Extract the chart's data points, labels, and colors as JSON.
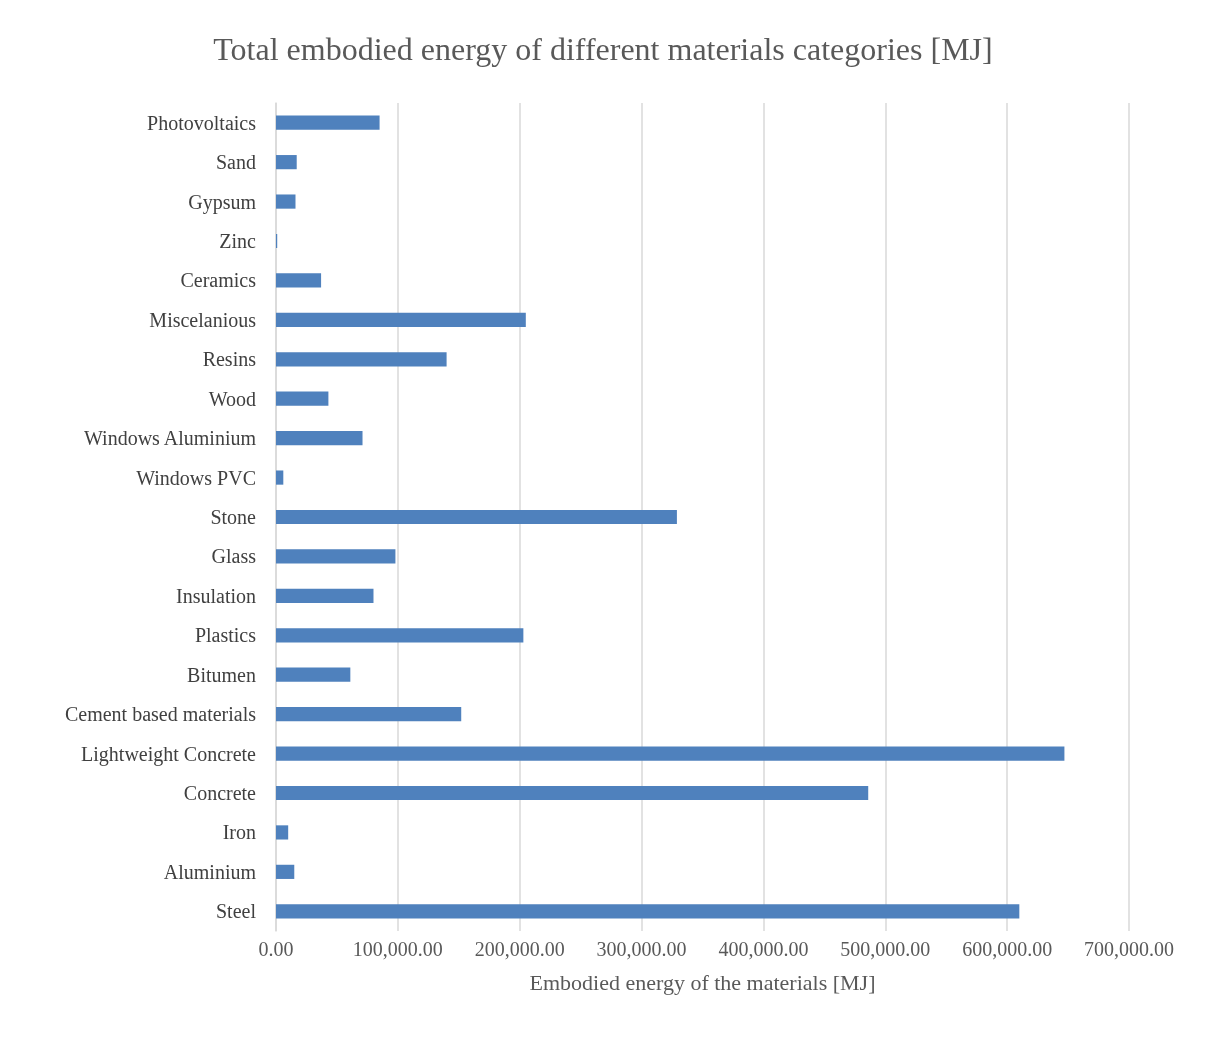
{
  "chart_data": {
    "type": "bar",
    "orientation": "horizontal",
    "title": "Total embodied energy of different materials categories [MJ]",
    "xlabel": "Embodied energy of the materials [MJ]",
    "categories": [
      "Photovoltaics",
      "Sand",
      "Gypsum",
      "Zinc",
      "Ceramics",
      "Miscelanious",
      "Resins",
      "Wood",
      "Windows Aluminium",
      "Windows PVC",
      "Stone",
      "Glass",
      "Insulation",
      "Plastics",
      "Bitumen",
      "Cement based materials",
      "Lightweight Concrete",
      "Concrete",
      "Iron",
      "Aluminium",
      "Steel"
    ],
    "values": [
      85000,
      17000,
      16000,
      1000,
      37000,
      205000,
      140000,
      43000,
      71000,
      6000,
      329000,
      98000,
      80000,
      203000,
      61000,
      152000,
      647000,
      486000,
      10000,
      15000,
      610000
    ],
    "color": "#4f81bd",
    "xlim": [
      0,
      700000
    ],
    "xticks": [
      {
        "value": 0,
        "label": "0.00"
      },
      {
        "value": 100000,
        "label": "100,000.00"
      },
      {
        "value": 200000,
        "label": "200,000.00"
      },
      {
        "value": 300000,
        "label": "300,000.00"
      },
      {
        "value": 400000,
        "label": "400,000.00"
      },
      {
        "value": 500000,
        "label": "500,000.00"
      },
      {
        "value": 600000,
        "label": "600,000.00"
      },
      {
        "value": 700000,
        "label": "700,000.00"
      }
    ],
    "grid": "x"
  }
}
